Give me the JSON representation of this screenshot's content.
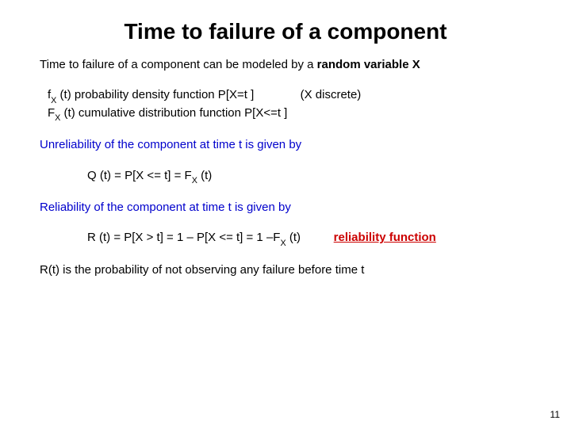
{
  "colors": {
    "blue": "#0000cc",
    "red": "#cc0000",
    "text": "#000000",
    "background": "#ffffff"
  },
  "typography": {
    "title_font": "Comic Sans MS",
    "body_font": "Arial",
    "title_size_pt": 28,
    "body_size_pt": 15
  },
  "title": "Time to failure of a component",
  "intro": {
    "pre": "Time to failure of a component can be modeled by  a ",
    "rv": "random variable  X"
  },
  "pdf": {
    "sym_f": "f",
    "sub": "X",
    "t": " (t)",
    "desc": "   probability density function   P[X=t ]",
    "note": "(X  discrete)"
  },
  "cdf": {
    "sym_F": "F",
    "sub": "X",
    "t": " (t)",
    "desc": "  cumulative distribution function   P[X<=t ]"
  },
  "unrel_label": "Unreliability of the component at time t is given by",
  "unrel_formula": {
    "pre": "Q (t) = P[X <= t] = F",
    "sub": "X",
    "post": " (t)"
  },
  "rel_label": "Reliability of the component at time t is given by",
  "rel_formula": {
    "pre": "R (t) = P[X > t] = 1 – P[X <= t] = 1 –F",
    "sub": "X",
    "post": " (t)"
  },
  "rel_func_label": "reliability function",
  "closing": "R(t) is the probability of not observing any failure before time t",
  "page_number": "11"
}
